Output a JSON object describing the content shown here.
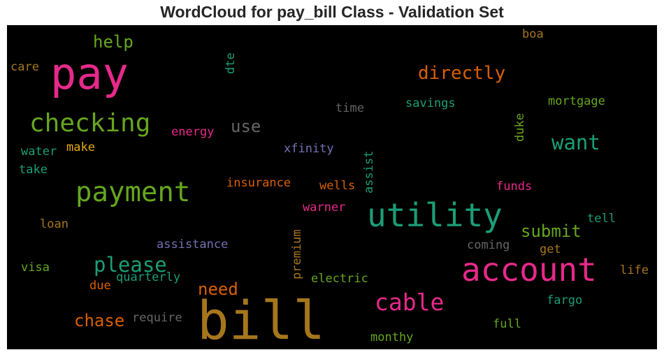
{
  "title": "WordCloud for pay_bill Class - Validation Set",
  "colors": {
    "background": "#000000",
    "pink": "#e7298a",
    "green": "#66a61e",
    "teal": "#1b9e77",
    "orange": "#d95f02",
    "gold": "#a6761d",
    "gray": "#666666",
    "purple": "#7570b3"
  },
  "words": {
    "pay": "pay",
    "bill": "bill",
    "account": "account",
    "utility": "utility",
    "payment": "payment",
    "checking": "checking",
    "cable": "cable",
    "please": "please",
    "directly": "directly",
    "want": "want",
    "help": "help",
    "use": "use",
    "submit": "submit",
    "need": "need",
    "chase": "chase",
    "care": "care",
    "dte": "dte",
    "boa": "boa",
    "time": "time",
    "savings": "savings",
    "mortgage": "mortgage",
    "energy": "energy",
    "duke": "duke",
    "water": "water",
    "make": "make",
    "xfinity": "xfinity",
    "assist": "assist",
    "take": "take",
    "insurance": "insurance",
    "wells": "wells",
    "funds": "funds",
    "warner": "warner",
    "loan": "loan",
    "premium": "premium",
    "tell": "tell",
    "assistance": "assistance",
    "coming": "coming",
    "get": "get",
    "visa": "visa",
    "quarterly": "quarterly",
    "due": "due",
    "electric": "electric",
    "life": "life",
    "fargo": "fargo",
    "require": "require",
    "full": "full",
    "monthy": "monthy"
  }
}
